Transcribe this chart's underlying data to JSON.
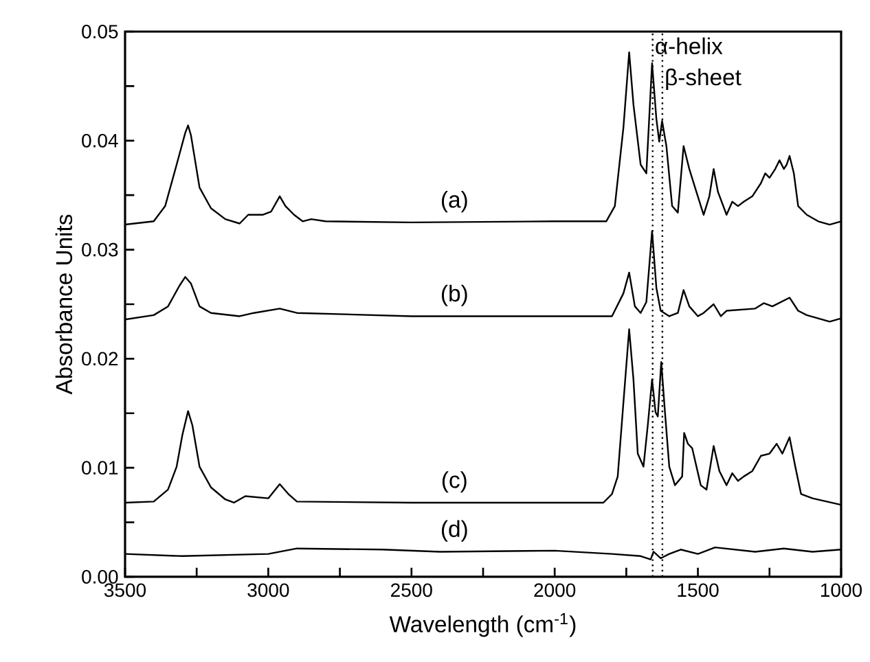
{
  "chart_data": {
    "type": "line",
    "xlabel": "Wavelength (cm$^{-1}$)",
    "ylabel": "Absorbance Units",
    "xlim": [
      3500,
      1000
    ],
    "ylim": [
      0,
      0.05
    ],
    "xticks": [
      3500,
      {
        "value": 3250,
        "label": null
      },
      3000,
      {
        "value": 2750,
        "label": null
      },
      2500,
      {
        "value": 2250,
        "label": null
      },
      2000,
      {
        "value": 1750,
        "label": null
      },
      1500,
      {
        "value": 1250,
        "label": null
      },
      1000
    ],
    "yticks": [
      {
        "value": 0,
        "label": "0.00"
      },
      {
        "value": 0.005,
        "label": null
      },
      {
        "value": 0.01,
        "label": "0.01"
      },
      {
        "value": 0.015,
        "label": null
      },
      {
        "value": 0.02,
        "label": "0.02"
      },
      {
        "value": 0.025,
        "label": null
      },
      {
        "value": 0.03,
        "label": "0.03"
      },
      {
        "value": 0.035,
        "label": null
      },
      {
        "value": 0.04,
        "label": "0.04"
      },
      {
        "value": 0.045,
        "label": null
      },
      {
        "value": 0.05,
        "label": "0.05"
      }
    ],
    "legend": false,
    "grid": false,
    "marker": "none",
    "line_style": "solid",
    "ref_lines": [
      {
        "axis": "x",
        "value": 1658,
        "label": "α-helix",
        "line_style": "dotted"
      },
      {
        "axis": "x",
        "value": 1624,
        "label": "β-sheet",
        "line_style": "dotted"
      }
    ],
    "series": [
      {
        "name": "(a)",
        "color": "#000000",
        "x": [
          3500,
          3400,
          3360,
          3320,
          3290,
          3280,
          3270,
          3240,
          3200,
          3150,
          3100,
          3070,
          3020,
          2990,
          2960,
          2940,
          2910,
          2880,
          2850,
          2800,
          2500,
          2000,
          1820,
          1790,
          1760,
          1740,
          1725,
          1700,
          1680,
          1660,
          1645,
          1635,
          1625,
          1610,
          1590,
          1570,
          1550,
          1530,
          1510,
          1480,
          1460,
          1445,
          1430,
          1400,
          1380,
          1360,
          1340,
          1310,
          1280,
          1265,
          1250,
          1230,
          1215,
          1200,
          1190,
          1180,
          1165,
          1150,
          1120,
          1080,
          1040,
          1000
        ],
        "values": [
          0.0323,
          0.0326,
          0.034,
          0.0378,
          0.0407,
          0.0414,
          0.0405,
          0.0357,
          0.0338,
          0.0328,
          0.0324,
          0.0332,
          0.0332,
          0.0335,
          0.0349,
          0.034,
          0.0332,
          0.0326,
          0.0328,
          0.0326,
          0.0325,
          0.0326,
          0.0326,
          0.034,
          0.0412,
          0.0481,
          0.0433,
          0.0378,
          0.037,
          0.0471,
          0.042,
          0.0399,
          0.0418,
          0.0395,
          0.034,
          0.0334,
          0.0395,
          0.0374,
          0.0357,
          0.0332,
          0.0349,
          0.0374,
          0.0353,
          0.0332,
          0.0344,
          0.034,
          0.0344,
          0.0349,
          0.0361,
          0.037,
          0.0366,
          0.0374,
          0.0382,
          0.0374,
          0.0378,
          0.0386,
          0.037,
          0.034,
          0.0332,
          0.0326,
          0.0323,
          0.0326
        ]
      },
      {
        "name": "(b)",
        "color": "#000000",
        "x": [
          3500,
          3400,
          3350,
          3310,
          3290,
          3270,
          3240,
          3200,
          3100,
          3050,
          2960,
          2900,
          2500,
          2000,
          1800,
          1760,
          1740,
          1720,
          1700,
          1680,
          1660,
          1645,
          1630,
          1600,
          1570,
          1550,
          1530,
          1500,
          1480,
          1445,
          1420,
          1400,
          1300,
          1270,
          1240,
          1180,
          1150,
          1120,
          1080,
          1040,
          1000
        ],
        "values": [
          0.0236,
          0.024,
          0.0248,
          0.0267,
          0.0275,
          0.0269,
          0.0248,
          0.0242,
          0.0239,
          0.0242,
          0.0246,
          0.0242,
          0.0239,
          0.0239,
          0.0239,
          0.026,
          0.0279,
          0.0248,
          0.0242,
          0.0252,
          0.0317,
          0.0265,
          0.0244,
          0.0239,
          0.0242,
          0.0263,
          0.0248,
          0.0239,
          0.0242,
          0.025,
          0.0239,
          0.0244,
          0.0246,
          0.0251,
          0.0248,
          0.0256,
          0.0244,
          0.024,
          0.0237,
          0.0234,
          0.0237
        ]
      },
      {
        "name": "(c)",
        "color": "#000000",
        "x": [
          3500,
          3400,
          3350,
          3320,
          3300,
          3280,
          3265,
          3240,
          3200,
          3150,
          3120,
          3080,
          3000,
          2960,
          2930,
          2900,
          2500,
          2000,
          1830,
          1800,
          1780,
          1760,
          1740,
          1725,
          1710,
          1690,
          1675,
          1660,
          1648,
          1640,
          1628,
          1615,
          1600,
          1580,
          1555,
          1548,
          1535,
          1520,
          1490,
          1470,
          1445,
          1425,
          1400,
          1380,
          1360,
          1340,
          1310,
          1280,
          1250,
          1225,
          1205,
          1180,
          1160,
          1140,
          1100,
          1050,
          1000
        ],
        "values": [
          0.0068,
          0.0069,
          0.008,
          0.0101,
          0.013,
          0.0152,
          0.0139,
          0.0101,
          0.0082,
          0.0071,
          0.0068,
          0.0074,
          0.0072,
          0.0085,
          0.0076,
          0.0069,
          0.0068,
          0.0068,
          0.0068,
          0.0076,
          0.0092,
          0.016,
          0.0227,
          0.0181,
          0.0113,
          0.0101,
          0.0139,
          0.0181,
          0.0151,
          0.0147,
          0.0197,
          0.0151,
          0.0101,
          0.0084,
          0.0092,
          0.0132,
          0.0122,
          0.0118,
          0.0084,
          0.008,
          0.012,
          0.0097,
          0.0084,
          0.0095,
          0.0088,
          0.0092,
          0.0097,
          0.0111,
          0.0113,
          0.0122,
          0.0113,
          0.0128,
          0.0101,
          0.0076,
          0.0072,
          0.0069,
          0.0066
        ]
      },
      {
        "name": "(d)",
        "color": "#000000",
        "x": [
          3500,
          3300,
          3000,
          2900,
          2600,
          2400,
          2000,
          1800,
          1700,
          1665,
          1655,
          1630,
          1600,
          1560,
          1500,
          1440,
          1300,
          1200,
          1100,
          1000
        ],
        "values": [
          0.0021,
          0.0019,
          0.0021,
          0.0026,
          0.0025,
          0.0023,
          0.0024,
          0.0021,
          0.0019,
          0.0016,
          0.0023,
          0.0017,
          0.0021,
          0.0025,
          0.0021,
          0.0027,
          0.0023,
          0.0026,
          0.0023,
          0.0025
        ]
      }
    ]
  }
}
